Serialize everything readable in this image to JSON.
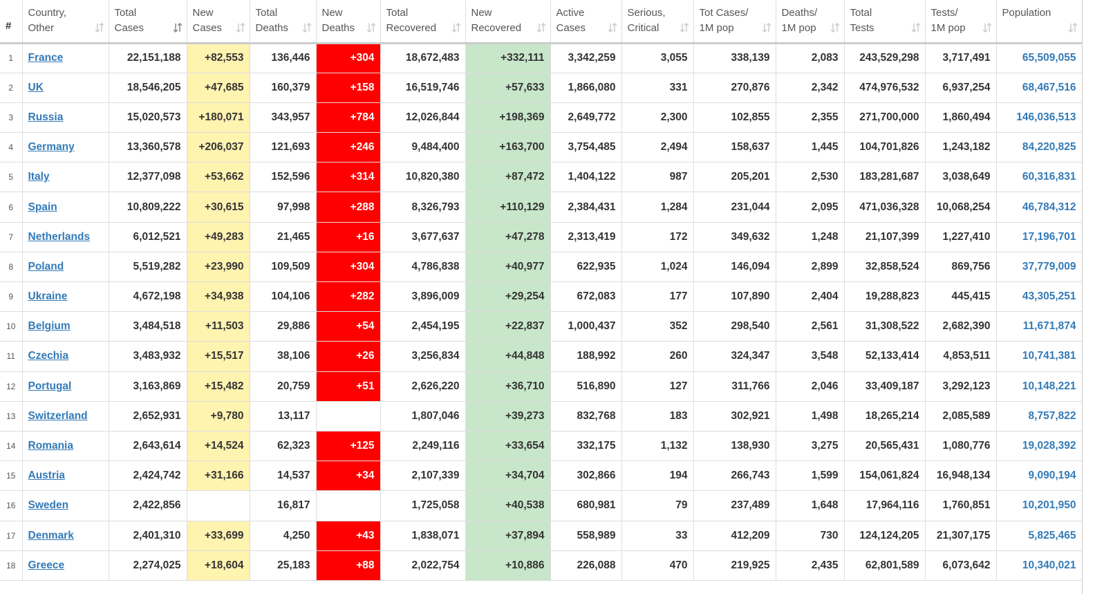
{
  "table": {
    "headers": [
      [
        "#"
      ],
      [
        "Country,",
        "Other"
      ],
      [
        "Total",
        "Cases"
      ],
      [
        "New",
        "Cases"
      ],
      [
        "Total",
        "Deaths"
      ],
      [
        "New",
        "Deaths"
      ],
      [
        "Total",
        "Recovered"
      ],
      [
        "New",
        "Recovered"
      ],
      [
        "Active",
        "Cases"
      ],
      [
        "Serious,",
        "Critical"
      ],
      [
        "Tot Cases/",
        "1M pop"
      ],
      [
        "Deaths/",
        "1M pop"
      ],
      [
        "Total",
        "Tests"
      ],
      [
        "Tests/",
        "1M pop"
      ],
      [
        "Population"
      ]
    ],
    "rows": [
      [
        1,
        "France",
        "22,151,188",
        "+82,553",
        "136,446",
        "+304",
        "18,672,483",
        "+332,111",
        "3,342,259",
        "3,055",
        "338,139",
        "2,083",
        "243,529,298",
        "3,717,491",
        "65,509,055"
      ],
      [
        2,
        "UK",
        "18,546,205",
        "+47,685",
        "160,379",
        "+158",
        "16,519,746",
        "+57,633",
        "1,866,080",
        "331",
        "270,876",
        "2,342",
        "474,976,532",
        "6,937,254",
        "68,467,516"
      ],
      [
        3,
        "Russia",
        "15,020,573",
        "+180,071",
        "343,957",
        "+784",
        "12,026,844",
        "+198,369",
        "2,649,772",
        "2,300",
        "102,855",
        "2,355",
        "271,700,000",
        "1,860,494",
        "146,036,513"
      ],
      [
        4,
        "Germany",
        "13,360,578",
        "+206,037",
        "121,693",
        "+246",
        "9,484,400",
        "+163,700",
        "3,754,485",
        "2,494",
        "158,637",
        "1,445",
        "104,701,826",
        "1,243,182",
        "84,220,825"
      ],
      [
        5,
        "Italy",
        "12,377,098",
        "+53,662",
        "152,596",
        "+314",
        "10,820,380",
        "+87,472",
        "1,404,122",
        "987",
        "205,201",
        "2,530",
        "183,281,687",
        "3,038,649",
        "60,316,831"
      ],
      [
        6,
        "Spain",
        "10,809,222",
        "+30,615",
        "97,998",
        "+288",
        "8,326,793",
        "+110,129",
        "2,384,431",
        "1,284",
        "231,044",
        "2,095",
        "471,036,328",
        "10,068,254",
        "46,784,312"
      ],
      [
        7,
        "Netherlands",
        "6,012,521",
        "+49,283",
        "21,465",
        "+16",
        "3,677,637",
        "+47,278",
        "2,313,419",
        "172",
        "349,632",
        "1,248",
        "21,107,399",
        "1,227,410",
        "17,196,701"
      ],
      [
        8,
        "Poland",
        "5,519,282",
        "+23,990",
        "109,509",
        "+304",
        "4,786,838",
        "+40,977",
        "622,935",
        "1,024",
        "146,094",
        "2,899",
        "32,858,524",
        "869,756",
        "37,779,009"
      ],
      [
        9,
        "Ukraine",
        "4,672,198",
        "+34,938",
        "104,106",
        "+282",
        "3,896,009",
        "+29,254",
        "672,083",
        "177",
        "107,890",
        "2,404",
        "19,288,823",
        "445,415",
        "43,305,251"
      ],
      [
        10,
        "Belgium",
        "3,484,518",
        "+11,503",
        "29,886",
        "+54",
        "2,454,195",
        "+22,837",
        "1,000,437",
        "352",
        "298,540",
        "2,561",
        "31,308,522",
        "2,682,390",
        "11,671,874"
      ],
      [
        11,
        "Czechia",
        "3,483,932",
        "+15,517",
        "38,106",
        "+26",
        "3,256,834",
        "+44,848",
        "188,992",
        "260",
        "324,347",
        "3,548",
        "52,133,414",
        "4,853,511",
        "10,741,381"
      ],
      [
        12,
        "Portugal",
        "3,163,869",
        "+15,482",
        "20,759",
        "+51",
        "2,626,220",
        "+36,710",
        "516,890",
        "127",
        "311,766",
        "2,046",
        "33,409,187",
        "3,292,123",
        "10,148,221"
      ],
      [
        13,
        "Switzerland",
        "2,652,931",
        "+9,780",
        "13,117",
        null,
        "1,807,046",
        "+39,273",
        "832,768",
        "183",
        "302,921",
        "1,498",
        "18,265,214",
        "2,085,589",
        "8,757,822"
      ],
      [
        14,
        "Romania",
        "2,643,614",
        "+14,524",
        "62,323",
        "+125",
        "2,249,116",
        "+33,654",
        "332,175",
        "1,132",
        "138,930",
        "3,275",
        "20,565,431",
        "1,080,776",
        "19,028,392"
      ],
      [
        15,
        "Austria",
        "2,424,742",
        "+31,166",
        "14,537",
        "+34",
        "2,107,339",
        "+34,704",
        "302,866",
        "194",
        "266,743",
        "1,599",
        "154,061,824",
        "16,948,134",
        "9,090,194"
      ],
      [
        16,
        "Sweden",
        "2,422,856",
        null,
        "16,817",
        null,
        "1,725,058",
        "+40,538",
        "680,981",
        "79",
        "237,489",
        "1,648",
        "17,964,116",
        "1,760,851",
        "10,201,950"
      ],
      [
        17,
        "Denmark",
        "2,401,310",
        "+33,699",
        "4,250",
        "+43",
        "1,838,071",
        "+37,894",
        "558,989",
        "33",
        "412,209",
        "730",
        "124,124,205",
        "21,307,175",
        "5,825,465"
      ],
      [
        18,
        "Greece",
        "2,274,025",
        "+18,604",
        "25,183",
        "+88",
        "2,022,754",
        "+10,886",
        "226,088",
        "470",
        "219,925",
        "2,435",
        "62,801,589",
        "6,073,642",
        "10,340,021"
      ]
    ]
  }
}
